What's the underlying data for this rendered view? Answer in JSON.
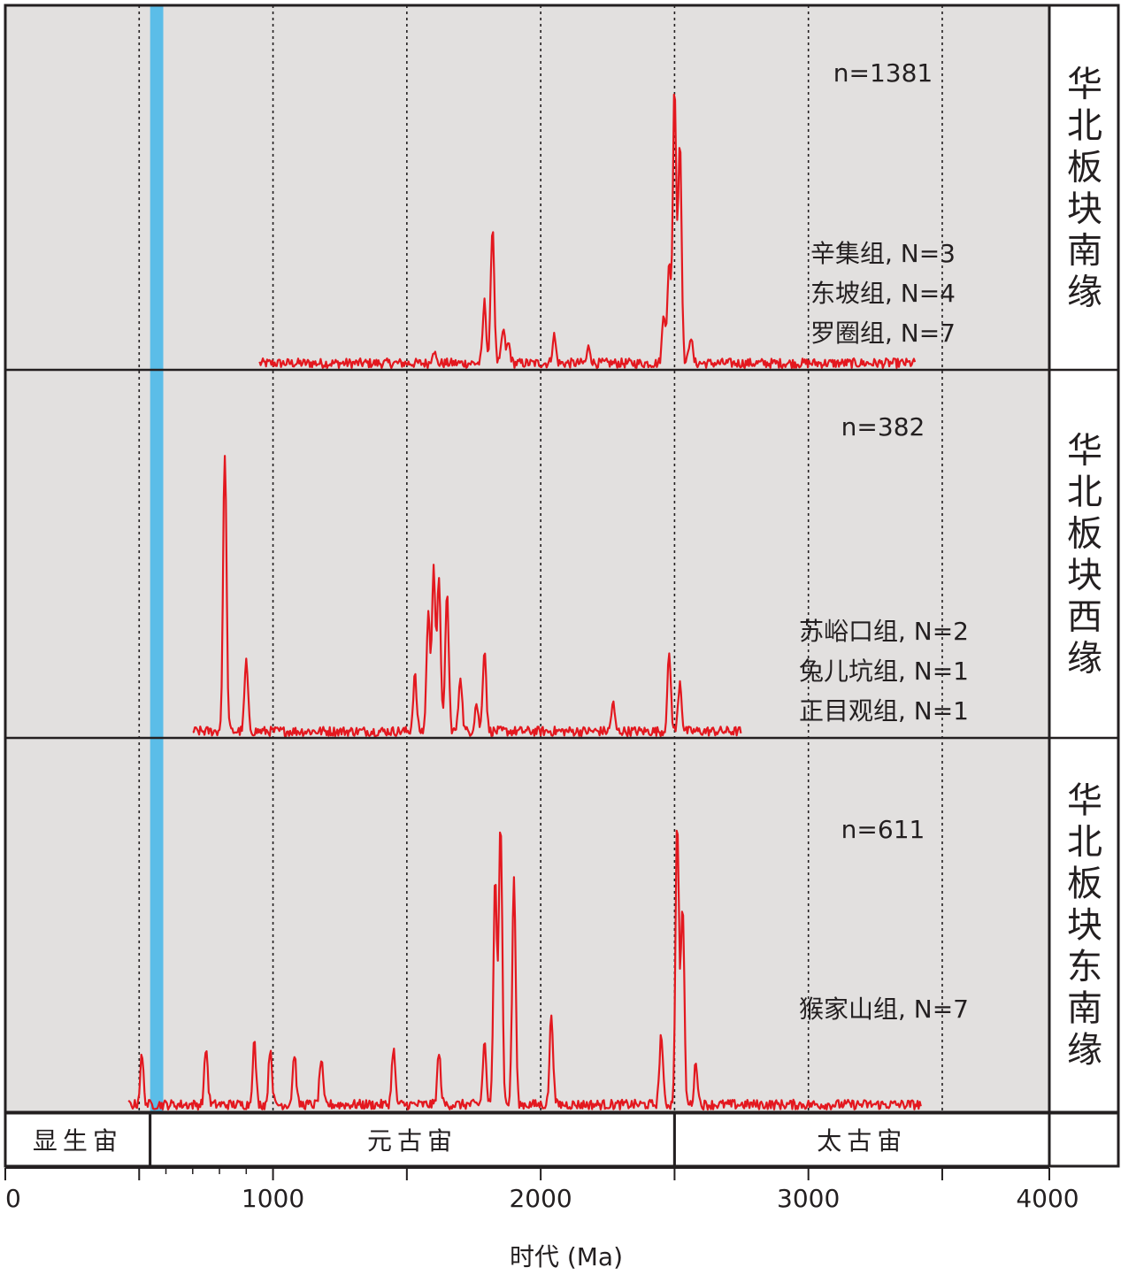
{
  "chart_data": {
    "type": "line",
    "xlabel": "时代 (Ma)",
    "xlim": [
      0,
      3900
    ],
    "x_ticks": [
      "0",
      "1000",
      "2000",
      "3000",
      "4000"
    ],
    "x_tick_values": [
      0,
      1000,
      2000,
      3000,
      3900
    ],
    "minor_ticks": [
      500,
      1500,
      2500,
      3500
    ],
    "dotted_gridlines": [
      500,
      1000,
      1500,
      2000,
      2500,
      3000,
      3500
    ],
    "grid": true,
    "background_color": "#e2e0df",
    "line_color": "#e3181f",
    "highlight_band": {
      "x0": 541,
      "x1": 590,
      "color": "#5bbde8"
    },
    "eon_bar": [
      {
        "label": "显生宙",
        "x0": 0,
        "x1": 541
      },
      {
        "label": "元古宙",
        "x0": 541,
        "x1": 2500
      },
      {
        "label": "太古宙",
        "x0": 2500,
        "x1": 3900
      }
    ],
    "panels": [
      {
        "side_label": "华北板块南缘",
        "n_label": "n=1381",
        "formations": [
          "辛集组, N=3",
          "东坡组, N=4",
          "罗圈组, N=7"
        ],
        "peaks": [
          {
            "x": 1820,
            "y": 0.5
          },
          {
            "x": 1790,
            "y": 0.22
          },
          {
            "x": 1860,
            "y": 0.12
          },
          {
            "x": 1880,
            "y": 0.07
          },
          {
            "x": 2050,
            "y": 0.1
          },
          {
            "x": 2180,
            "y": 0.06
          },
          {
            "x": 1600,
            "y": 0.05
          },
          {
            "x": 2460,
            "y": 0.18
          },
          {
            "x": 2500,
            "y": 1.0
          },
          {
            "x": 2520,
            "y": 0.8
          },
          {
            "x": 2480,
            "y": 0.35
          },
          {
            "x": 2560,
            "y": 0.1
          }
        ],
        "xrange": [
          950,
          3400
        ]
      },
      {
        "side_label": "华北板块西缘",
        "n_label": "n=382",
        "formations": [
          "苏峪口组, N=2",
          "兔儿坑组, N=1",
          "正目观组, N=1"
        ],
        "peaks": [
          {
            "x": 820,
            "y": 1.0
          },
          {
            "x": 900,
            "y": 0.25
          },
          {
            "x": 1530,
            "y": 0.2
          },
          {
            "x": 1580,
            "y": 0.42
          },
          {
            "x": 1600,
            "y": 0.59
          },
          {
            "x": 1620,
            "y": 0.55
          },
          {
            "x": 1650,
            "y": 0.5
          },
          {
            "x": 1700,
            "y": 0.2
          },
          {
            "x": 1790,
            "y": 0.3
          },
          {
            "x": 1760,
            "y": 0.1
          },
          {
            "x": 2270,
            "y": 0.1
          },
          {
            "x": 2480,
            "y": 0.27
          },
          {
            "x": 2520,
            "y": 0.18
          }
        ],
        "xrange": [
          700,
          2750
        ]
      },
      {
        "side_label": "华北板块东南缘",
        "n_label": "n=611",
        "formations": [
          "猴家山组, N=7"
        ],
        "peaks": [
          {
            "x": 510,
            "y": 0.17
          },
          {
            "x": 750,
            "y": 0.2
          },
          {
            "x": 930,
            "y": 0.22
          },
          {
            "x": 990,
            "y": 0.2
          },
          {
            "x": 1080,
            "y": 0.18
          },
          {
            "x": 1180,
            "y": 0.16
          },
          {
            "x": 1450,
            "y": 0.2
          },
          {
            "x": 1620,
            "y": 0.18
          },
          {
            "x": 1790,
            "y": 0.22
          },
          {
            "x": 1830,
            "y": 0.8
          },
          {
            "x": 1850,
            "y": 1.0
          },
          {
            "x": 1900,
            "y": 0.8
          },
          {
            "x": 2040,
            "y": 0.32
          },
          {
            "x": 2450,
            "y": 0.25
          },
          {
            "x": 2510,
            "y": 1.0
          },
          {
            "x": 2530,
            "y": 0.7
          },
          {
            "x": 2580,
            "y": 0.15
          }
        ],
        "xrange": [
          460,
          3420
        ]
      }
    ]
  }
}
